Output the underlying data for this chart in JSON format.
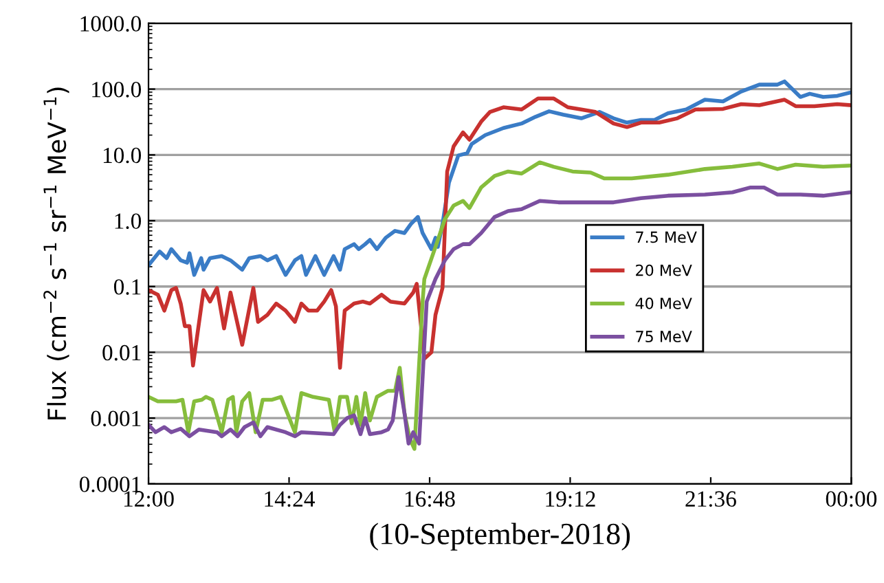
{
  "chart_data": {
    "type": "line",
    "xlabel": "(10-September-2018)",
    "ylabel": "Flux (cm$^{−2}$ s$^{−1}$ sr$^{−1}$ MeV$^{−1}$)",
    "log": "y",
    "grid": "y",
    "legend": "center right",
    "marker": "none",
    "line_style": "solid",
    "xlim": [
      12,
      24
    ],
    "xticks": [
      {
        "value": 12,
        "label": "12:00"
      },
      {
        "value": 14.4,
        "label": "14:24"
      },
      {
        "value": 16.8,
        "label": "16:48"
      },
      {
        "value": 19.2,
        "label": "19:12"
      },
      {
        "value": 21.6,
        "label": "21:36"
      },
      {
        "value": 24,
        "label": "00:00"
      }
    ],
    "ylim": [
      0.0001,
      1000
    ],
    "yticks": [
      {
        "value": 0.0001,
        "label": "0.0001"
      },
      {
        "value": 0.001,
        "label": "0.001"
      },
      {
        "value": 0.01,
        "label": "0.01"
      },
      {
        "value": 0.1,
        "label": "0.1"
      },
      {
        "value": 1,
        "label": "1.0"
      },
      {
        "value": 10,
        "label": "10.0"
      },
      {
        "value": 100,
        "label": "100.0"
      },
      {
        "value": 1000,
        "label": "1000.0"
      }
    ],
    "series": [
      {
        "name": "7.5 MeV",
        "color": "#3a7cc6",
        "x": [
          12.0,
          12.19,
          12.31,
          12.39,
          12.55,
          12.66,
          12.7,
          12.78,
          12.9,
          12.94,
          13.05,
          13.25,
          13.4,
          13.6,
          13.72,
          13.91,
          14.03,
          14.18,
          14.34,
          14.5,
          14.61,
          14.69,
          14.85,
          15.0,
          15.16,
          15.27,
          15.35,
          15.51,
          15.59,
          15.7,
          15.78,
          15.9,
          16.05,
          16.21,
          16.37,
          16.48,
          16.6,
          16.68,
          16.83,
          16.9,
          16.94,
          17.02,
          17.13,
          17.29,
          17.44,
          17.52,
          17.75,
          18.06,
          18.37,
          18.61,
          18.84,
          19.08,
          19.39,
          19.7,
          19.94,
          20.17,
          20.41,
          20.64,
          20.87,
          21.18,
          21.5,
          21.81,
          22.12,
          22.43,
          22.74,
          22.86,
          23.13,
          23.29,
          23.52,
          23.76,
          23.99
        ],
        "values": [
          0.21,
          0.34,
          0.27,
          0.37,
          0.25,
          0.23,
          0.32,
          0.15,
          0.27,
          0.18,
          0.27,
          0.29,
          0.25,
          0.18,
          0.27,
          0.29,
          0.25,
          0.29,
          0.15,
          0.25,
          0.29,
          0.15,
          0.29,
          0.15,
          0.29,
          0.18,
          0.37,
          0.44,
          0.37,
          0.44,
          0.51,
          0.37,
          0.55,
          0.7,
          0.65,
          0.89,
          1.14,
          0.65,
          0.37,
          0.55,
          0.4,
          0.89,
          3.8,
          9.8,
          10.6,
          14.7,
          20,
          25.6,
          30,
          38,
          46,
          41,
          36,
          45,
          36,
          31,
          34,
          34,
          43,
          49,
          69,
          65,
          92,
          117,
          117,
          131,
          76,
          85,
          76,
          79,
          89
        ]
      },
      {
        "name": "20 MeV",
        "color": "#c8312f",
        "x": [
          12.0,
          12.16,
          12.27,
          12.39,
          12.47,
          12.55,
          12.62,
          12.7,
          12.76,
          12.94,
          13.05,
          13.17,
          13.29,
          13.4,
          13.6,
          13.79,
          13.87,
          14.03,
          14.18,
          14.34,
          14.5,
          14.61,
          14.73,
          14.88,
          15.0,
          15.12,
          15.2,
          15.27,
          15.35,
          15.51,
          15.66,
          15.78,
          15.98,
          16.13,
          16.37,
          16.52,
          16.58,
          16.71,
          16.83,
          16.9,
          17.02,
          17.1,
          17.21,
          17.37,
          17.48,
          17.68,
          17.83,
          18.06,
          18.37,
          18.65,
          18.92,
          19.16,
          19.39,
          19.63,
          19.94,
          20.17,
          20.41,
          20.72,
          21.03,
          21.34,
          21.81,
          22.12,
          22.43,
          22.86,
          23.05,
          23.37,
          23.76,
          23.99
        ],
        "values": [
          0.088,
          0.075,
          0.043,
          0.088,
          0.095,
          0.055,
          0.025,
          0.025,
          0.0063,
          0.088,
          0.059,
          0.095,
          0.023,
          0.081,
          0.013,
          0.095,
          0.029,
          0.037,
          0.055,
          0.043,
          0.029,
          0.055,
          0.043,
          0.043,
          0.059,
          0.088,
          0.05,
          0.0058,
          0.043,
          0.055,
          0.059,
          0.055,
          0.075,
          0.059,
          0.055,
          0.081,
          0.11,
          0.008,
          0.01,
          0.037,
          0.095,
          5.6,
          13.5,
          22,
          17,
          32,
          45,
          53,
          49,
          72,
          72,
          53,
          49,
          45,
          30,
          26.5,
          31,
          31,
          36,
          49,
          50,
          59,
          57,
          69,
          55,
          55,
          59,
          57
        ]
      },
      {
        "name": "40 MeV",
        "color": "#86bd3c",
        "x": [
          12.0,
          12.16,
          12.47,
          12.58,
          12.68,
          12.78,
          12.91,
          12.98,
          13.09,
          13.25,
          13.36,
          13.44,
          13.5,
          13.6,
          13.72,
          13.83,
          13.95,
          14.11,
          14.26,
          14.5,
          14.61,
          14.81,
          15.08,
          15.18,
          15.27,
          15.39,
          15.47,
          15.55,
          15.62,
          15.7,
          15.78,
          15.9,
          16.09,
          16.21,
          16.29,
          16.37,
          16.46,
          16.54,
          16.68,
          16.71,
          16.9,
          17.06,
          17.21,
          17.37,
          17.48,
          17.68,
          17.91,
          18.14,
          18.37,
          18.68,
          18.92,
          19.24,
          19.55,
          19.78,
          20.25,
          20.87,
          21.5,
          21.97,
          22.43,
          22.74,
          23.05,
          23.52,
          23.99
        ],
        "values": [
          0.0021,
          0.0018,
          0.0018,
          0.0019,
          0.00061,
          0.0018,
          0.0019,
          0.0021,
          0.0019,
          0.00061,
          0.0019,
          0.0021,
          0.00061,
          0.0018,
          0.0024,
          0.00061,
          0.0019,
          0.0019,
          0.0021,
          0.00061,
          0.0024,
          0.0021,
          0.0019,
          0.00061,
          0.0021,
          0.0021,
          0.00083,
          0.0021,
          0.00079,
          0.0024,
          0.00092,
          0.0021,
          0.0026,
          0.0026,
          0.0058,
          0.0012,
          0.00049,
          0.00034,
          0.059,
          0.13,
          0.4,
          1.05,
          1.7,
          2.0,
          1.56,
          3.2,
          4.8,
          5.6,
          5.2,
          7.7,
          6.6,
          5.6,
          5.4,
          4.4,
          4.4,
          5.0,
          6.1,
          6.6,
          7.4,
          6.1,
          7.1,
          6.6,
          6.9
        ]
      },
      {
        "name": "75 MeV",
        "color": "#7b4fa0",
        "x": [
          12.0,
          12.12,
          12.27,
          12.39,
          12.55,
          12.7,
          12.86,
          13.17,
          13.25,
          13.4,
          13.52,
          13.64,
          13.79,
          13.91,
          14.03,
          14.34,
          14.5,
          14.61,
          15.16,
          15.27,
          15.39,
          15.51,
          15.62,
          15.7,
          15.78,
          15.98,
          16.09,
          16.17,
          16.27,
          16.37,
          16.44,
          16.52,
          16.62,
          16.75,
          16.9,
          17.06,
          17.21,
          17.37,
          17.48,
          17.68,
          17.91,
          18.14,
          18.37,
          18.68,
          19.0,
          19.47,
          19.94,
          20.41,
          20.87,
          21.5,
          21.97,
          22.28,
          22.51,
          22.74,
          23.13,
          23.52,
          23.99
        ],
        "values": [
          0.00079,
          0.00061,
          0.00073,
          0.00061,
          0.00069,
          0.00053,
          0.00067,
          0.00061,
          0.00053,
          0.00067,
          0.00053,
          0.00073,
          0.00086,
          0.00053,
          0.00073,
          0.00061,
          0.00053,
          0.00061,
          0.00057,
          0.00079,
          0.001,
          0.0011,
          0.00057,
          0.001,
          0.00057,
          0.00061,
          0.00067,
          0.00092,
          0.0042,
          0.0012,
          0.00041,
          0.00061,
          0.00041,
          0.059,
          0.13,
          0.25,
          0.37,
          0.44,
          0.44,
          0.65,
          1.14,
          1.4,
          1.5,
          2.0,
          1.9,
          1.9,
          1.9,
          2.2,
          2.4,
          2.5,
          2.7,
          3.2,
          3.2,
          2.5,
          2.5,
          2.4,
          2.7
        ]
      }
    ]
  }
}
